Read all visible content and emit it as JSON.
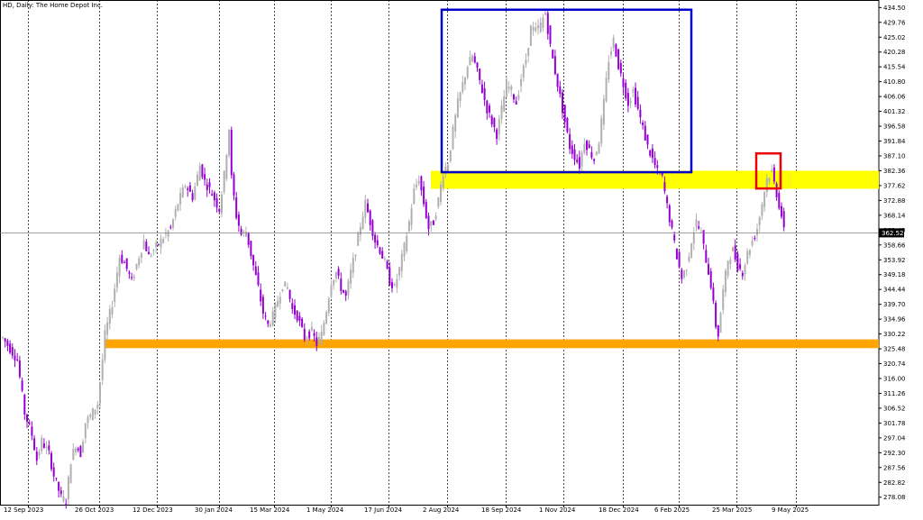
{
  "chart_data": {
    "type": "candlestick",
    "symbol": "HD",
    "timeframe": "Daily",
    "company": "The Home Depot Inc.",
    "title_sep": ", ",
    "title_sep2": ":  ",
    "y_ticks": [
      "434.50",
      "429.76",
      "425.02",
      "420.28",
      "415.54",
      "410.80",
      "406.06",
      "401.32",
      "396.58",
      "391.84",
      "387.10",
      "382.36",
      "377.62",
      "372.88",
      "368.14",
      "363.40",
      "358.66",
      "353.92",
      "349.18",
      "344.44",
      "339.70",
      "334.96",
      "330.22",
      "325.48",
      "320.74",
      "316.00",
      "311.26",
      "306.52",
      "301.78",
      "297.04",
      "292.30",
      "287.56",
      "282.82",
      "278.08"
    ],
    "ylim": [
      275.7,
      436.9
    ],
    "current_price": "362.52",
    "date_labels": [
      "12 Sep 2023",
      "26 Oct 2023",
      "12 Dec 2023",
      "30 Jan 2024",
      "15 Mar 2024",
      "1 May 2024",
      "17 Jun 2024",
      "2 Aug 2024",
      "18 Sep 2024",
      "1 Nov 2024",
      "18 Dec 2024",
      "6 Feb 2025",
      "25 Mar 2025",
      "9 May 2025"
    ],
    "price_path": [
      [
        0,
        329
      ],
      [
        6,
        322
      ],
      [
        9,
        305
      ],
      [
        12,
        298
      ],
      [
        14,
        290
      ],
      [
        16,
        296
      ],
      [
        19,
        292
      ],
      [
        21,
        285
      ],
      [
        24,
        278
      ],
      [
        26,
        277
      ],
      [
        28,
        290
      ],
      [
        30,
        295
      ],
      [
        32,
        292
      ],
      [
        34,
        302
      ],
      [
        36,
        304
      ],
      [
        39,
        308
      ],
      [
        41,
        322
      ],
      [
        42,
        330
      ],
      [
        45,
        340
      ],
      [
        48,
        355
      ],
      [
        50,
        353
      ],
      [
        53,
        347
      ],
      [
        56,
        355
      ],
      [
        58,
        360
      ],
      [
        60,
        355
      ],
      [
        63,
        358
      ],
      [
        66,
        361
      ],
      [
        69,
        364
      ],
      [
        72,
        372
      ],
      [
        75,
        378
      ],
      [
        78,
        374
      ],
      [
        81,
        384
      ],
      [
        83,
        379
      ],
      [
        86,
        375
      ],
      [
        89,
        370
      ],
      [
        91,
        381
      ],
      [
        93,
        396
      ],
      [
        94,
        380
      ],
      [
        96,
        368
      ],
      [
        98,
        362
      ],
      [
        100,
        363
      ],
      [
        103,
        352
      ],
      [
        105,
        345
      ],
      [
        107,
        337
      ],
      [
        109,
        333
      ],
      [
        111,
        336
      ],
      [
        113,
        341
      ],
      [
        115,
        346
      ],
      [
        117,
        345
      ],
      [
        119,
        338
      ],
      [
        121,
        336
      ],
      [
        124,
        329
      ],
      [
        127,
        331
      ],
      [
        129,
        327
      ],
      [
        131,
        330
      ],
      [
        133,
        338
      ],
      [
        135,
        347
      ],
      [
        137,
        350
      ],
      [
        139,
        345
      ],
      [
        141,
        342
      ],
      [
        143,
        350
      ],
      [
        145,
        357
      ],
      [
        147,
        365
      ],
      [
        149,
        372
      ],
      [
        151,
        366
      ],
      [
        153,
        360
      ],
      [
        155,
        357
      ],
      [
        157,
        353
      ],
      [
        159,
        347
      ],
      [
        161,
        345
      ],
      [
        163,
        351
      ],
      [
        165,
        358
      ],
      [
        167,
        366
      ],
      [
        169,
        376
      ],
      [
        171,
        380
      ],
      [
        173,
        372
      ],
      [
        175,
        364
      ],
      [
        177,
        366
      ],
      [
        179,
        373
      ],
      [
        181,
        382
      ],
      [
        183,
        385
      ],
      [
        185,
        395
      ],
      [
        187,
        404
      ],
      [
        189,
        410
      ],
      [
        191,
        416
      ],
      [
        193,
        419
      ],
      [
        195,
        414
      ],
      [
        197,
        408
      ],
      [
        199,
        402
      ],
      [
        201,
        398
      ],
      [
        203,
        394
      ],
      [
        205,
        402
      ],
      [
        207,
        410
      ],
      [
        209,
        408
      ],
      [
        211,
        404
      ],
      [
        213,
        412
      ],
      [
        215,
        418
      ],
      [
        217,
        428
      ],
      [
        219,
        427
      ],
      [
        221,
        429
      ],
      [
        223,
        433
      ],
      [
        225,
        422
      ],
      [
        227,
        414
      ],
      [
        229,
        406
      ],
      [
        231,
        398
      ],
      [
        233,
        390
      ],
      [
        235,
        387
      ],
      [
        237,
        384
      ],
      [
        239,
        392
      ],
      [
        241,
        389
      ],
      [
        243,
        386
      ],
      [
        245,
        392
      ],
      [
        247,
        404
      ],
      [
        249,
        418
      ],
      [
        251,
        424
      ],
      [
        253,
        416
      ],
      [
        255,
        410
      ],
      [
        257,
        404
      ],
      [
        259,
        408
      ],
      [
        261,
        402
      ],
      [
        263,
        396
      ],
      [
        265,
        390
      ],
      [
        267,
        386
      ],
      [
        269,
        382
      ],
      [
        271,
        380
      ],
      [
        273,
        371
      ],
      [
        275,
        363
      ],
      [
        277,
        355
      ],
      [
        279,
        348
      ],
      [
        281,
        352
      ],
      [
        283,
        360
      ],
      [
        285,
        366
      ],
      [
        287,
        362
      ],
      [
        289,
        354
      ],
      [
        291,
        346
      ],
      [
        293,
        333
      ],
      [
        294,
        330
      ],
      [
        296,
        344
      ],
      [
        298,
        354
      ],
      [
        300,
        357
      ],
      [
        302,
        352
      ],
      [
        304,
        350
      ],
      [
        306,
        356
      ],
      [
        308,
        360
      ],
      [
        310,
        364
      ],
      [
        312,
        372
      ],
      [
        314,
        380
      ],
      [
        316,
        382
      ],
      [
        318,
        375
      ],
      [
        320,
        368
      ],
      [
        321,
        363
      ]
    ],
    "zones": [
      {
        "type": "rect",
        "y_top": 382.36,
        "y_bottom": 376.6,
        "color": "#FFFF00"
      },
      {
        "type": "rect",
        "y_top": 328.5,
        "y_bottom": 325.7,
        "color": "#FFA500"
      }
    ],
    "boxes": [
      {
        "y_top": 433.8,
        "y_bottom": 381.9,
        "color": "#0000CC"
      },
      {
        "y_top": 387.9,
        "y_bottom": 376.7,
        "color": "#EE0000"
      }
    ],
    "colors": {
      "bull": "#B0B0B0",
      "bear": "#9400D3",
      "grid": "#000000",
      "price_line": "#A0A0A0",
      "price_box": "#000000",
      "price_text": "#FFFFFF"
    },
    "grid": true
  }
}
